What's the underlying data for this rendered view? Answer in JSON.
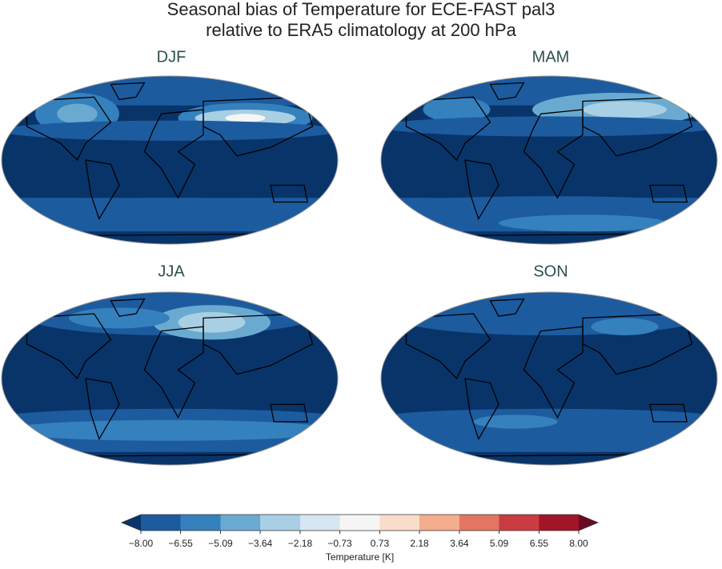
{
  "title": [
    "Seasonal bias of Temperature for ECE-FAST pal3",
    "relative to ERA5 climatology at 200 hPa"
  ],
  "panels": [
    {
      "label": "DJF"
    },
    {
      "label": "MAM"
    },
    {
      "label": "JJA"
    },
    {
      "label": "SON"
    }
  ],
  "colorbar": {
    "label": "Temperature [K]",
    "ticks": [
      {
        "value": -8,
        "label": "−8.00"
      },
      {
        "value": -6.55,
        "label": "−6.55"
      },
      {
        "value": -5.09,
        "label": "−5.09"
      },
      {
        "value": -3.64,
        "label": "−3.64"
      },
      {
        "value": -2.18,
        "label": "−2.18"
      },
      {
        "value": -0.73,
        "label": "−0.73"
      },
      0.73,
      2.18,
      3.64,
      5.09,
      6.55,
      {
        "value": 8,
        "label": "8.00"
      }
    ],
    "colors": [
      "#1d5b9f",
      "#3581bd",
      "#6aaad1",
      "#a8cfe4",
      "#d6e7f1",
      "#f5f5f5",
      "#fadcca",
      "#f4ad8d",
      "#e27662",
      "#c93c40",
      "#a21428"
    ],
    "under_color": "#083469",
    "over_color": "#6a0a22"
  }
}
